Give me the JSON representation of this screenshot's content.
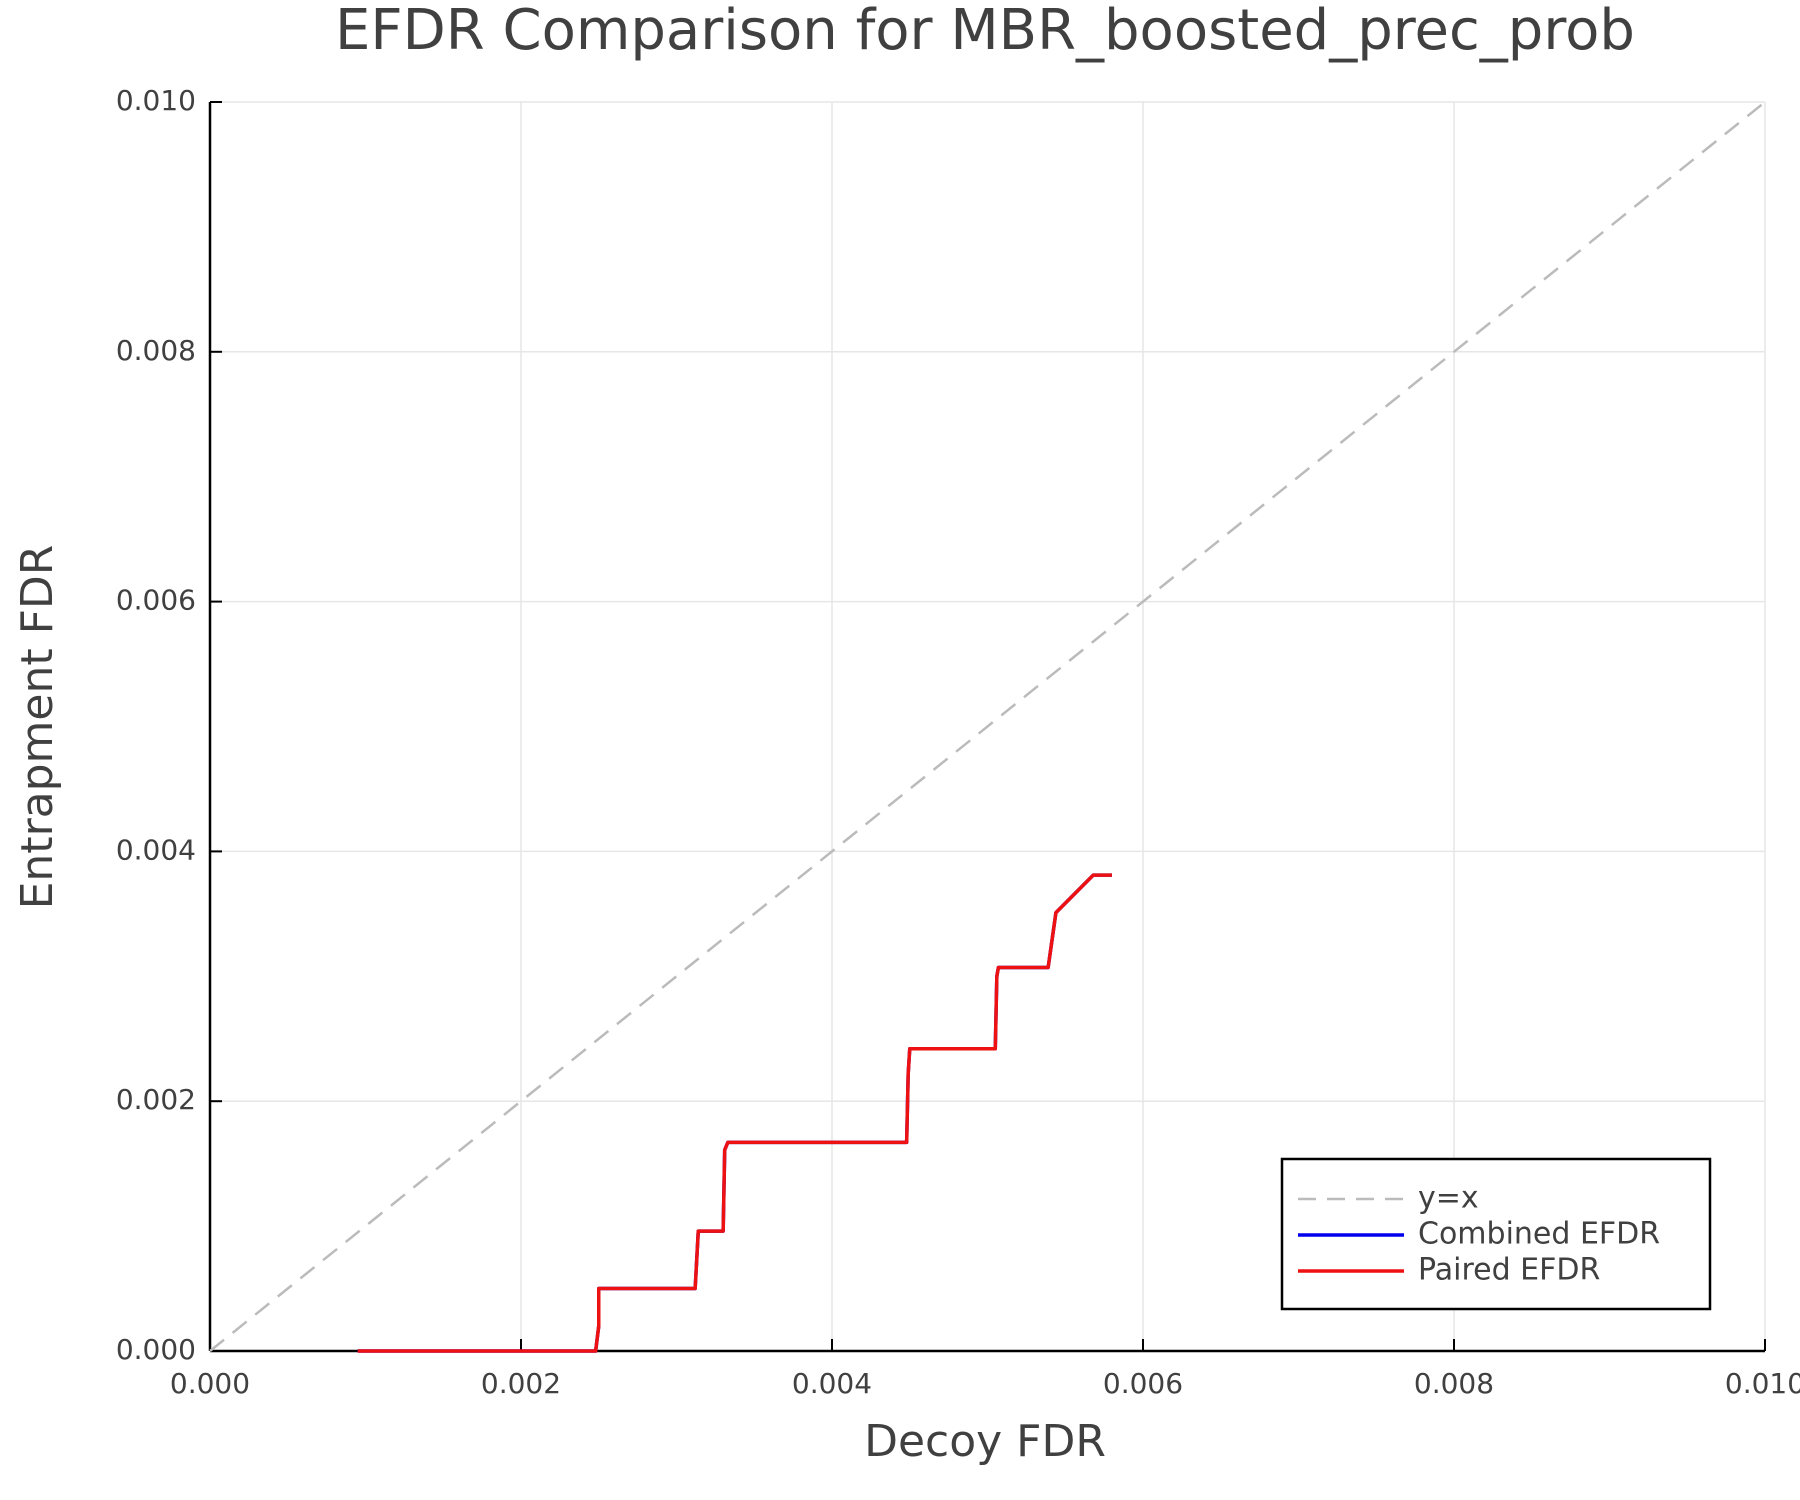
{
  "chart_data": {
    "type": "line",
    "title": "EFDR Comparison for MBR_boosted_prec_prob",
    "x_label": "Decoy FDR",
    "y_label": "Entrapment FDR",
    "xlim": [
      0,
      0.01
    ],
    "ylim": [
      0,
      0.01
    ],
    "xticks": [
      {
        "value": 0,
        "label": "0.000"
      },
      {
        "value": 0.002,
        "label": "0.002"
      },
      {
        "value": 0.004,
        "label": "0.004"
      },
      {
        "value": 0.006,
        "label": "0.006"
      },
      {
        "value": 0.008,
        "label": "0.008"
      },
      {
        "value": 0.01,
        "label": "0.010"
      }
    ],
    "yticks": [
      {
        "value": 0,
        "label": "0.000"
      },
      {
        "value": 0.002,
        "label": "0.002"
      },
      {
        "value": 0.004,
        "label": "0.004"
      },
      {
        "value": 0.006,
        "label": "0.006"
      },
      {
        "value": 0.008,
        "label": "0.008"
      },
      {
        "value": 0.01,
        "label": "0.010"
      }
    ],
    "grid": true,
    "legend": "lower right",
    "series": [
      {
        "name": "y=x",
        "color": "#bbbbbb",
        "linestyle": "dashed",
        "x": [
          0,
          0.01
        ],
        "values": [
          0,
          0.01
        ]
      },
      {
        "name": "Combined EFDR",
        "color": "#0000ee",
        "linestyle": "solid",
        "x": [
          0.00095,
          0.00248,
          0.0025,
          0.0025,
          0.00312,
          0.00314,
          0.0033,
          0.00331,
          0.00333,
          0.00448,
          0.00449,
          0.0045,
          0.00505,
          0.00506,
          0.00507,
          0.00539,
          0.00544,
          0.00568,
          0.0058
        ],
        "values": [
          0,
          0,
          0.0002,
          0.0005,
          0.0005,
          0.00096,
          0.00096,
          0.00161,
          0.00167,
          0.00167,
          0.00222,
          0.00242,
          0.00242,
          0.003,
          0.00307,
          0.00307,
          0.00351,
          0.00381,
          0.00381
        ]
      },
      {
        "name": "Paired EFDR",
        "color": "#ee1111",
        "linestyle": "solid",
        "x": [
          0.00095,
          0.00248,
          0.0025,
          0.0025,
          0.00312,
          0.00314,
          0.0033,
          0.00331,
          0.00333,
          0.00448,
          0.00449,
          0.0045,
          0.00505,
          0.00506,
          0.00507,
          0.00539,
          0.00544,
          0.00568,
          0.0058
        ],
        "values": [
          0,
          0,
          0.0002,
          0.0005,
          0.0005,
          0.00096,
          0.00096,
          0.00161,
          0.00167,
          0.00167,
          0.00222,
          0.00242,
          0.00242,
          0.003,
          0.00307,
          0.00307,
          0.00351,
          0.00381,
          0.00381
        ]
      }
    ]
  }
}
